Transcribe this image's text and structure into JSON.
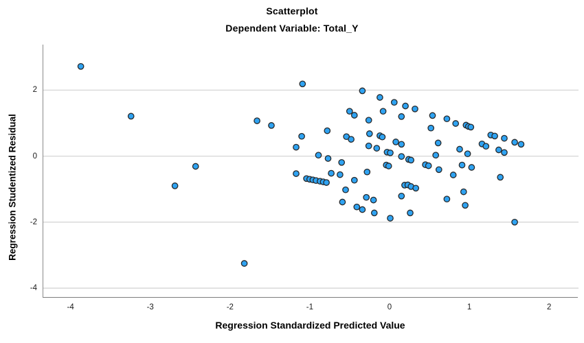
{
  "chart_data": {
    "type": "scatter",
    "title": "Scatterplot",
    "subtitle": "Dependent Variable: Total_Y",
    "xlabel": "Regression Standardized Predicted Value",
    "ylabel": "Regression Studentized Residual",
    "xlim": [
      -4.35,
      2.36
    ],
    "ylim": [
      -4.29,
      3.38
    ],
    "x_ticks": [
      -4,
      -3,
      -2,
      -1,
      0,
      1,
      2
    ],
    "y_ticks": [
      2,
      0,
      -2,
      -4
    ],
    "grid": "horizontal",
    "legend": "none",
    "marker": {
      "shape": "circle",
      "fill": "#2FA3F2",
      "stroke": "#26282A",
      "radius": 4.2,
      "stroke_width": 1.3
    },
    "colors": {
      "gridline": "#D5D5D5",
      "axis_line": "#8A8A8A",
      "text": "#000000",
      "background": "#FFFFFF"
    },
    "points": [
      [
        -3.88,
        2.72
      ],
      [
        -3.25,
        1.21
      ],
      [
        -2.7,
        -0.9
      ],
      [
        -2.44,
        -0.31
      ],
      [
        -1.83,
        -3.25
      ],
      [
        -1.67,
        1.07
      ],
      [
        -1.49,
        0.93
      ],
      [
        -1.18,
        0.27
      ],
      [
        -1.11,
        0.6
      ],
      [
        -1.1,
        2.19
      ],
      [
        -1.18,
        -0.53
      ],
      [
        -1.05,
        -0.68
      ],
      [
        -1.01,
        -0.7
      ],
      [
        -0.97,
        -0.72
      ],
      [
        -0.93,
        -0.74
      ],
      [
        -0.88,
        -0.76
      ],
      [
        -0.84,
        -0.78
      ],
      [
        -0.8,
        -0.8
      ],
      [
        -0.9,
        0.03
      ],
      [
        -0.79,
        0.77
      ],
      [
        -0.78,
        -0.07
      ],
      [
        -0.74,
        -0.52
      ],
      [
        -0.63,
        -0.56
      ],
      [
        -0.61,
        -0.19
      ],
      [
        -0.6,
        -1.39
      ],
      [
        -0.56,
        -1.02
      ],
      [
        -0.55,
        0.59
      ],
      [
        -0.51,
        1.36
      ],
      [
        -0.49,
        0.51
      ],
      [
        -0.45,
        1.24
      ],
      [
        -0.45,
        -0.73
      ],
      [
        -0.42,
        -1.54
      ],
      [
        -0.35,
        1.98
      ],
      [
        -0.35,
        -1.62
      ],
      [
        -0.3,
        -1.25
      ],
      [
        -0.29,
        -0.48
      ],
      [
        -0.27,
        1.09
      ],
      [
        -0.27,
        0.31
      ],
      [
        -0.26,
        0.68
      ],
      [
        -0.21,
        -1.33
      ],
      [
        -0.2,
        -1.72
      ],
      [
        -0.17,
        0.24
      ],
      [
        -0.13,
        1.78
      ],
      [
        -0.13,
        0.62
      ],
      [
        -0.1,
        0.58
      ],
      [
        -0.09,
        1.36
      ],
      [
        -0.05,
        -0.27
      ],
      [
        -0.02,
        -0.3
      ],
      [
        -0.04,
        0.12
      ],
      [
        0.0,
        0.1
      ],
      [
        0.0,
        -1.88
      ],
      [
        0.05,
        1.63
      ],
      [
        0.07,
        0.43
      ],
      [
        0.14,
        1.2
      ],
      [
        0.14,
        0.36
      ],
      [
        0.14,
        -0.01
      ],
      [
        0.14,
        -1.21
      ],
      [
        0.19,
        1.52
      ],
      [
        0.18,
        -0.88
      ],
      [
        0.22,
        -0.87
      ],
      [
        0.23,
        -0.1
      ],
      [
        0.26,
        -0.12
      ],
      [
        0.26,
        -0.92
      ],
      [
        0.25,
        -1.72
      ],
      [
        0.31,
        1.43
      ],
      [
        0.32,
        -0.97
      ],
      [
        0.44,
        -0.26
      ],
      [
        0.48,
        -0.29
      ],
      [
        0.51,
        0.85
      ],
      [
        0.53,
        1.23
      ],
      [
        0.57,
        0.03
      ],
      [
        0.6,
        0.4
      ],
      [
        0.61,
        -0.41
      ],
      [
        0.71,
        1.13
      ],
      [
        0.71,
        -1.3
      ],
      [
        0.79,
        -0.57
      ],
      [
        0.82,
        0.99
      ],
      [
        0.87,
        0.21
      ],
      [
        0.9,
        -0.27
      ],
      [
        0.92,
        -1.08
      ],
      [
        0.94,
        -1.49
      ],
      [
        0.95,
        0.94
      ],
      [
        0.98,
        0.9
      ],
      [
        1.01,
        0.88
      ],
      [
        0.97,
        0.07
      ],
      [
        1.02,
        -0.34
      ],
      [
        1.15,
        0.37
      ],
      [
        1.2,
        0.3
      ],
      [
        1.26,
        0.64
      ],
      [
        1.31,
        0.61
      ],
      [
        1.36,
        0.19
      ],
      [
        1.43,
        0.54
      ],
      [
        1.43,
        0.11
      ],
      [
        1.38,
        -0.64
      ],
      [
        1.56,
        0.42
      ],
      [
        1.64,
        0.36
      ],
      [
        1.56,
        -2.0
      ]
    ]
  }
}
